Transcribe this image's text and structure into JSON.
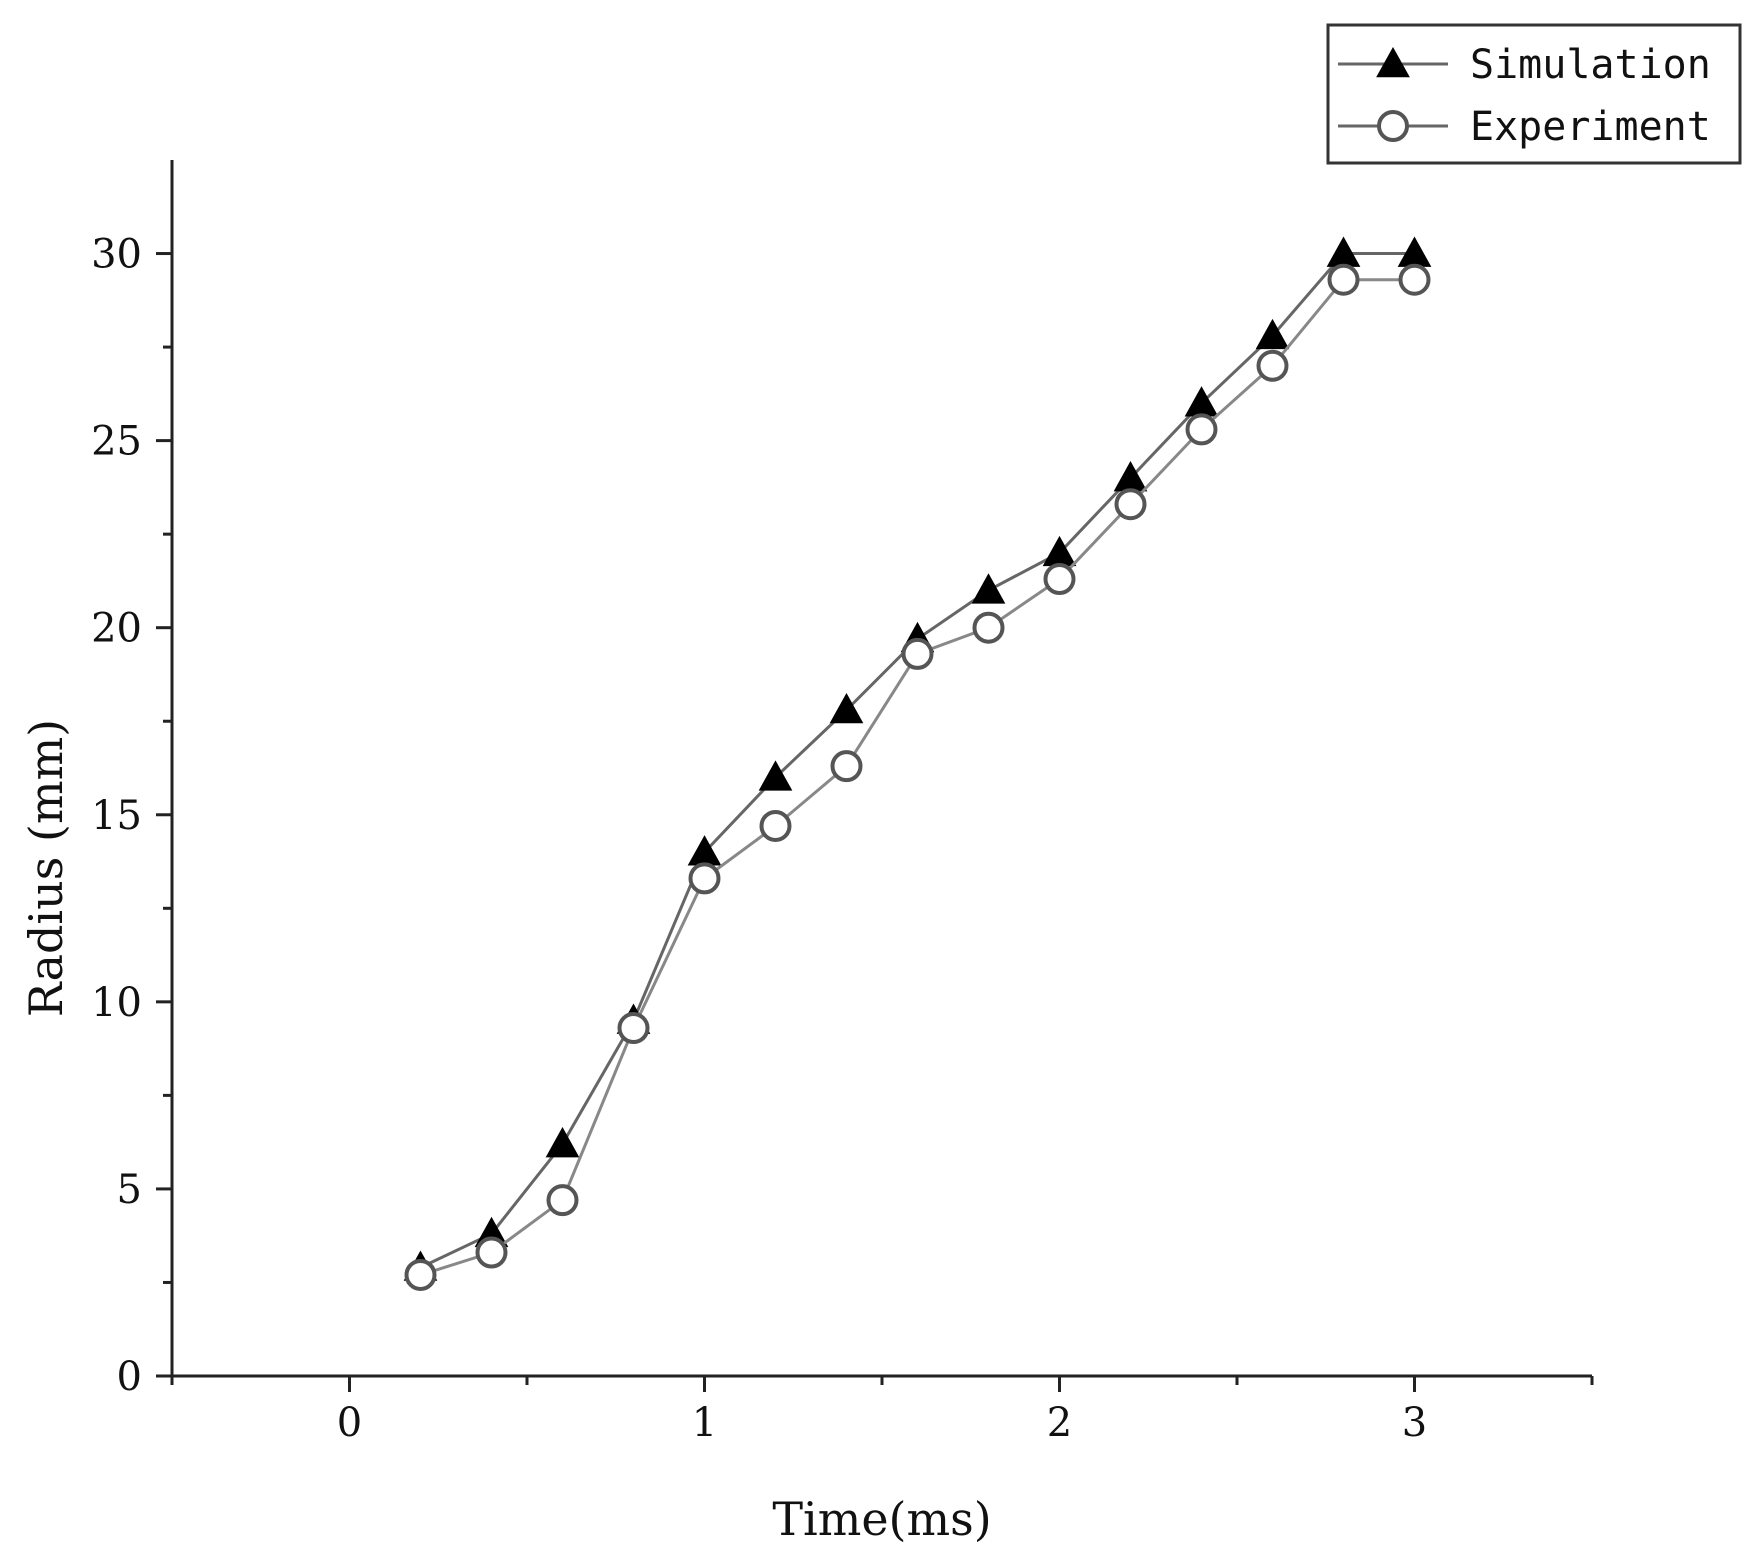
{
  "chart_data": {
    "type": "line",
    "xlabel": "Time(ms)",
    "ylabel": "Radius (mm)",
    "xlim": [
      -0.5,
      3.5
    ],
    "ylim": [
      0,
      32.5
    ],
    "x_ticks": [
      0,
      1,
      2,
      3
    ],
    "x_tick_labels": [
      "0",
      "1",
      "2",
      "3"
    ],
    "y_ticks": [
      0,
      5,
      10,
      15,
      20,
      25,
      30
    ],
    "y_tick_labels": [
      "0",
      "5",
      "10",
      "15",
      "20",
      "25",
      "30"
    ],
    "grid": false,
    "legend_position": "top-right",
    "x": [
      0.2,
      0.4,
      0.6,
      0.8,
      1.0,
      1.2,
      1.4,
      1.6,
      1.8,
      2.0,
      2.2,
      2.4,
      2.6,
      2.8,
      3.0
    ],
    "series": [
      {
        "name": "Simulation",
        "marker": "filled-triangle",
        "color": "#000000",
        "values": [
          2.9,
          3.8,
          6.2,
          9.5,
          14.0,
          16.0,
          17.8,
          19.7,
          21.0,
          22.0,
          24.0,
          26.0,
          27.8,
          30.0,
          30.0
        ]
      },
      {
        "name": "Experiment",
        "marker": "open-circle",
        "color": "#000000",
        "values": [
          2.7,
          3.3,
          4.7,
          9.3,
          13.3,
          14.7,
          16.3,
          19.3,
          20.0,
          21.3,
          23.3,
          25.3,
          27.0,
          29.3,
          29.3
        ]
      }
    ]
  }
}
